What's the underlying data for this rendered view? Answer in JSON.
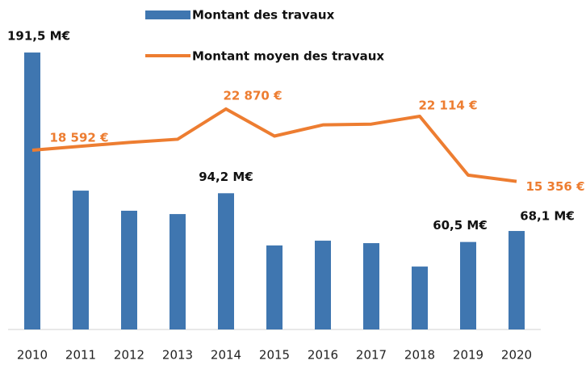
{
  "chart_data": {
    "type": "bar_line",
    "categories": [
      "2010",
      "2011",
      "2012",
      "2013",
      "2014",
      "2015",
      "2016",
      "2017",
      "2018",
      "2019",
      "2020"
    ],
    "ylim": [
      0,
      220
    ],
    "y2lim": [
      0,
      33000
    ],
    "series": [
      {
        "name": "Montant des travaux",
        "type": "bar",
        "color": "#3f76b0",
        "values": [
          191.5,
          96.0,
          82.1,
          79.8,
          94.2,
          58.1,
          61.4,
          59.7,
          43.5,
          60.5,
          68.1
        ],
        "value_labels": [
          "191,5 M€",
          null,
          null,
          null,
          "94,2 M€",
          null,
          null,
          null,
          null,
          "60,5 M€",
          "68,1 M€"
        ]
      },
      {
        "name": "Montant moyen des travaux",
        "type": "line",
        "axis": "y2",
        "color": "#ed7d31",
        "values": [
          18592,
          19000,
          19400,
          19730,
          22870,
          20060,
          21220,
          21300,
          22114,
          16010,
          15356
        ],
        "value_labels": [
          "18 592 €",
          null,
          null,
          null,
          "22 870 €",
          null,
          null,
          null,
          "22 114 €",
          null,
          "15 356 €"
        ]
      }
    ]
  }
}
